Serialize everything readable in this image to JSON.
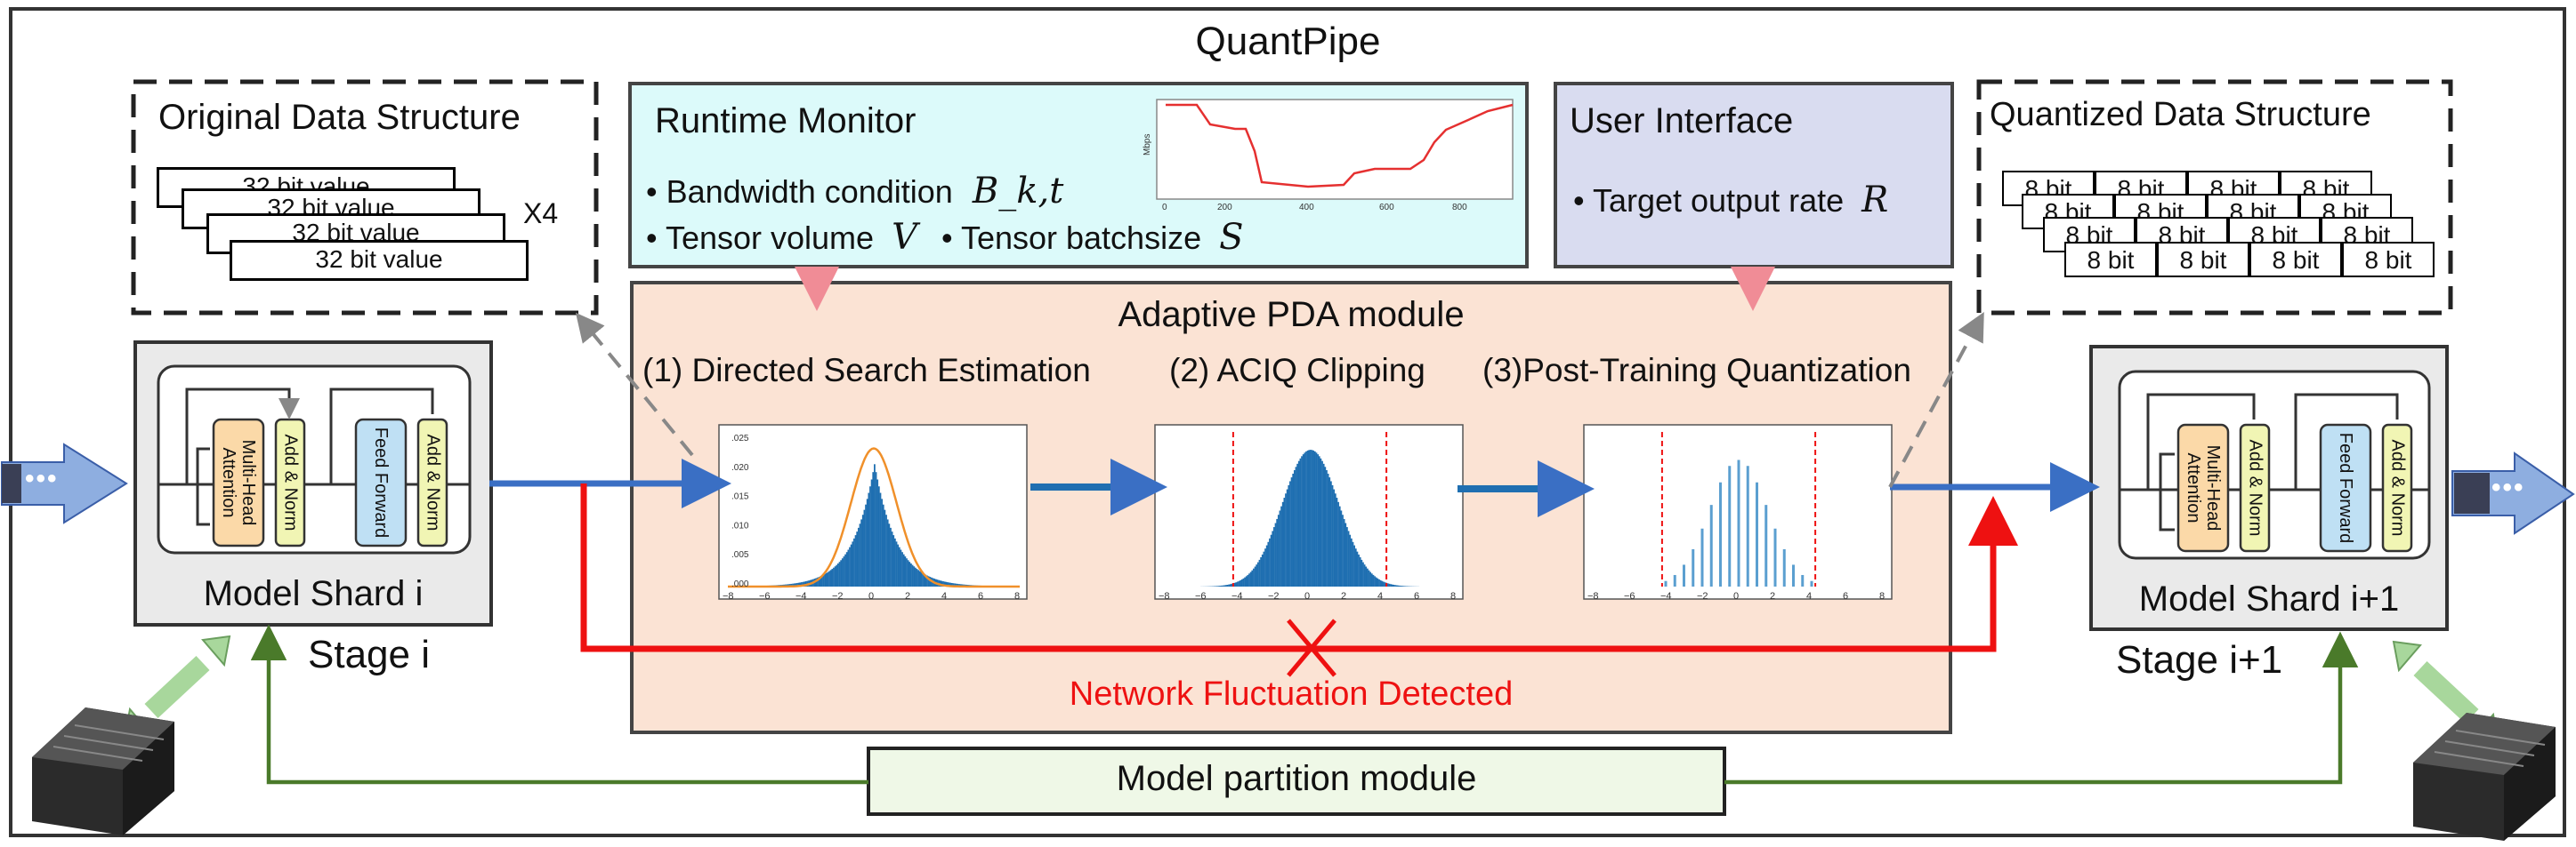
{
  "title": "QuantPipe",
  "original": {
    "heading": "Original Data Structure",
    "cells": [
      "32 bit value",
      "32 bit value",
      "32 bit value",
      "32 bit value"
    ],
    "multiplier": "X4"
  },
  "runtime": {
    "heading": "Runtime Monitor",
    "bandwidth": "• Bandwidth condition",
    "bandwidth_sym": "B_k,t",
    "volume": "• Tensor volume",
    "volume_sym": "V",
    "batch": "• Tensor batchsize",
    "batch_sym": "S",
    "mini_chart": {
      "ylabel": "Mbps",
      "xticks": [
        "0",
        "200",
        "400",
        "600",
        "800"
      ]
    }
  },
  "user": {
    "heading": "User Interface",
    "target": "• Target output rate",
    "target_sym": "R"
  },
  "quantized": {
    "heading": "Quantized Data Structure",
    "cell": "8 bit",
    "cells": [
      "8 bit",
      "8 bit",
      "8 bit",
      "8 bit"
    ]
  },
  "pda": {
    "heading": "Adaptive PDA module",
    "step1": "(1) Directed Search Estimation",
    "step2": "(2) ACIQ Clipping",
    "step3": "(3)Post-Training Quantization",
    "fluct": "Network Fluctuation Detected",
    "plot1_yticks": [
      ".025",
      ".020",
      ".015",
      ".010",
      ".005",
      ".000"
    ],
    "xticks": [
      "−8",
      "−6",
      "−4",
      "−2",
      "0",
      "2",
      "4",
      "6",
      "8"
    ]
  },
  "shard_i": {
    "attn": "Multi-Head Attention",
    "addnorm": "Add & Norm",
    "ff": "Feed Forward",
    "label": "Model Shard i",
    "stage": "Stage i"
  },
  "shard_i1": {
    "attn": "Multi-Head Attention",
    "addnorm": "Add & Norm",
    "ff": "Feed Forward",
    "label": "Model Shard i+1",
    "stage": "Stage i+1"
  },
  "partition": {
    "label": "Model partition module"
  },
  "ellipsis": "•••",
  "colors": {
    "runtime_bg": "#dcfafa",
    "user_bg": "#d9dcf0",
    "pda_bg": "#fbe3d4",
    "partition_bg": "#eff8e7",
    "shard_bg": "#eaeaea",
    "blue": "#3a6fc4",
    "red": "#ee1111",
    "green": "#4a7a2a",
    "pink": "#f08c96",
    "attn": "#fbd9a8",
    "addnorm": "#f1f5b4",
    "ff": "#bfe0f4",
    "hist": "#1f6fb1",
    "curve": "#f0902a"
  }
}
